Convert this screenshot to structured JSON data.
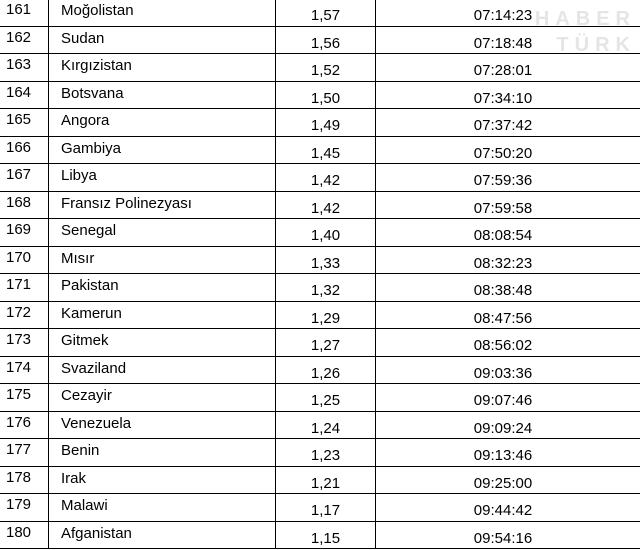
{
  "table": {
    "rows": [
      [
        "161",
        "Moğolistan",
        "1,57",
        "07:14:23"
      ],
      [
        "162",
        "Sudan",
        "1,56",
        "07:18:48"
      ],
      [
        "163",
        "Kırgızistan",
        "1,52",
        "07:28:01"
      ],
      [
        "164",
        "Botsvana",
        "1,50",
        "07:34:10"
      ],
      [
        "165",
        "Angora",
        "1,49",
        "07:37:42"
      ],
      [
        "166",
        "Gambiya",
        "1,45",
        "07:50:20"
      ],
      [
        "167",
        "Libya",
        "1,42",
        "07:59:36"
      ],
      [
        "168",
        "Fransız Polinezyası",
        "1,42",
        "07:59:58"
      ],
      [
        "169",
        "Senegal",
        "1,40",
        "08:08:54"
      ],
      [
        "170",
        "Mısır",
        "1,33",
        "08:32:23"
      ],
      [
        "171",
        "Pakistan",
        "1,32",
        "08:38:48"
      ],
      [
        "172",
        "Kamerun",
        "1,29",
        "08:47:56"
      ],
      [
        "173",
        "Gitmek",
        "1,27",
        "08:56:02"
      ],
      [
        "174",
        "Svaziland",
        "1,26",
        "09:03:36"
      ],
      [
        "175",
        "Cezayir",
        "1,25",
        "09:07:46"
      ],
      [
        "176",
        "Venezuela",
        "1,24",
        "09:09:24"
      ],
      [
        "177",
        "Benin",
        "1,23",
        "09:13:46"
      ],
      [
        "178",
        "Irak",
        "1,21",
        "09:25:00"
      ],
      [
        "179",
        "Malawi",
        "1,17",
        "09:44:42"
      ],
      [
        "180",
        "Afganistan",
        "1,15",
        "09:54:16"
      ]
    ]
  },
  "watermark": [
    "HABER",
    "TÜRK"
  ]
}
